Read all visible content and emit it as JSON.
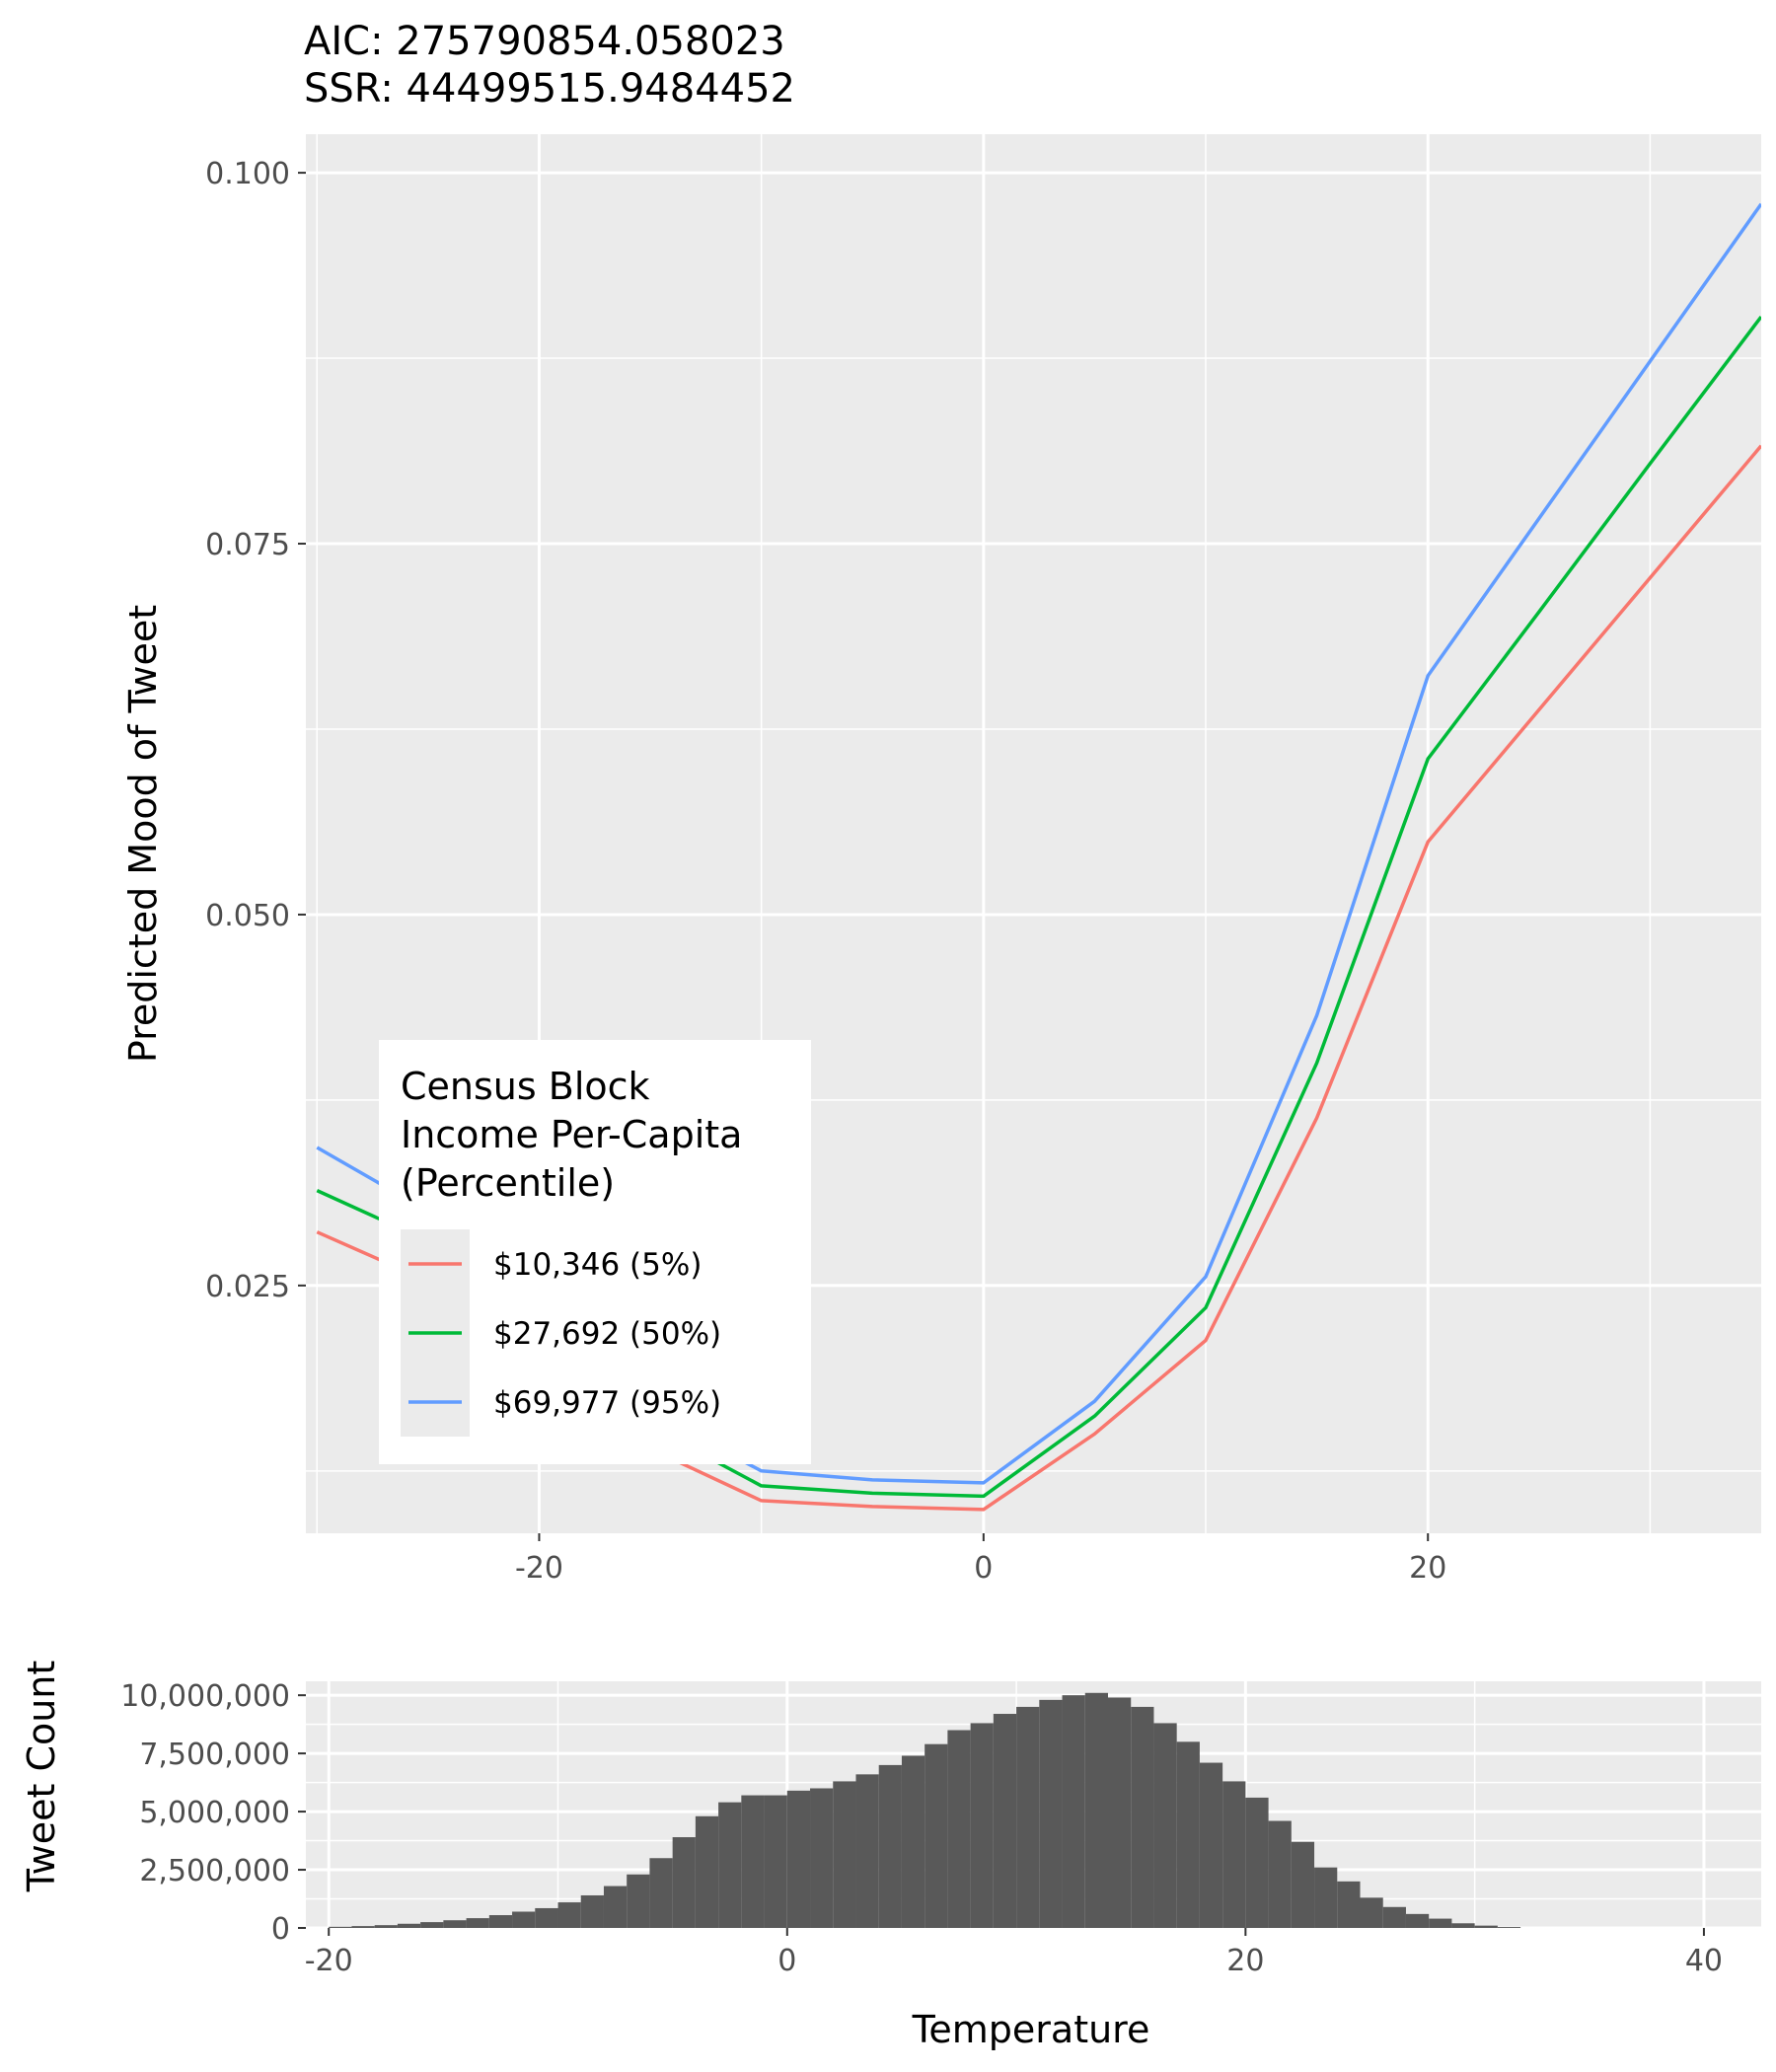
{
  "stats": {
    "aic": "AIC: 275790854.058023",
    "ssr": "SSR: 44499515.9484452"
  },
  "chart_data": [
    {
      "type": "line",
      "title": "",
      "xlabel": "",
      "ylabel": "Predicted Mood of Tweet",
      "xlim": [
        -30.5,
        35
      ],
      "ylim": [
        0.0083,
        0.1026
      ],
      "x_ticks": [
        -20,
        0,
        20
      ],
      "x_tick_labels": [
        "-20",
        "0",
        "20"
      ],
      "y_ticks": [
        0.025,
        0.05,
        0.075,
        0.1
      ],
      "y_tick_labels": [
        "0.025",
        "0.050",
        "0.075",
        "0.100"
      ],
      "grid": true,
      "legend": {
        "title_lines": [
          "Census Block",
          "Income Per-Capita",
          "(Percentile)"
        ],
        "placement": "bottom-left"
      },
      "x": [
        -30,
        -25,
        -20,
        -15,
        -10,
        -5,
        0,
        5,
        10,
        15,
        20,
        25,
        30,
        35
      ],
      "series": [
        {
          "name": "$10,346 (5%)",
          "color": "#F8766D",
          "values": [
            0.0286,
            0.0253,
            0.019,
            0.014,
            0.0105,
            0.0101,
            0.0099,
            0.015,
            0.0213,
            0.0363,
            0.0549,
            0.0638,
            0.0727,
            0.0816
          ]
        },
        {
          "name": "$27,692 (50%)",
          "color": "#00BA38",
          "values": [
            0.0314,
            0.028,
            0.021,
            0.0155,
            0.0115,
            0.011,
            0.0108,
            0.0162,
            0.0235,
            0.04,
            0.0605,
            0.0704,
            0.0804,
            0.0903
          ]
        },
        {
          "name": "$69,977 (95%)",
          "color": "#619CFF",
          "values": [
            0.0343,
            0.03,
            0.0225,
            0.0165,
            0.0125,
            0.0119,
            0.0117,
            0.0172,
            0.0256,
            0.0432,
            0.0661,
            0.0767,
            0.0873,
            0.0979
          ]
        }
      ]
    },
    {
      "type": "bar",
      "title": "",
      "xlabel": "Temperature",
      "ylabel": "Tweet Count",
      "xlim": [
        -21,
        42.5
      ],
      "ylim": [
        0,
        10600000
      ],
      "x_ticks": [
        -20,
        0,
        20,
        40
      ],
      "x_tick_labels": [
        "-20",
        "0",
        "20",
        "40"
      ],
      "y_ticks": [
        0,
        2500000,
        5000000,
        7500000,
        10000000
      ],
      "y_tick_labels": [
        "0",
        "2,500,000",
        "5,000,000",
        "7,500,000",
        "10,000,000"
      ],
      "grid": true,
      "bin_width": 1,
      "color": "#595959",
      "bin_starts": [
        -20,
        -19,
        -18,
        -17,
        -16,
        -15,
        -14,
        -13,
        -12,
        -11,
        -10,
        -9,
        -8,
        -7,
        -6,
        -5,
        -4,
        -3,
        -2,
        -1,
        0,
        1,
        2,
        3,
        4,
        5,
        6,
        7,
        8,
        9,
        10,
        11,
        12,
        13,
        14,
        15,
        16,
        17,
        18,
        19,
        20,
        21,
        22,
        23,
        24,
        25,
        26,
        27,
        28,
        29,
        30,
        31
      ],
      "values": [
        50000,
        80000,
        120000,
        180000,
        250000,
        330000,
        420000,
        550000,
        700000,
        850000,
        1100000,
        1400000,
        1800000,
        2300000,
        3000000,
        3900000,
        4800000,
        5400000,
        5700000,
        5700000,
        5900000,
        6000000,
        6300000,
        6600000,
        7000000,
        7400000,
        7900000,
        8500000,
        8800000,
        9200000,
        9500000,
        9800000,
        10000000,
        10100000,
        9900000,
        9500000,
        8800000,
        8000000,
        7100000,
        6300000,
        5600000,
        4600000,
        3700000,
        2600000,
        2000000,
        1300000,
        900000,
        600000,
        400000,
        200000,
        100000,
        40000
      ]
    }
  ]
}
